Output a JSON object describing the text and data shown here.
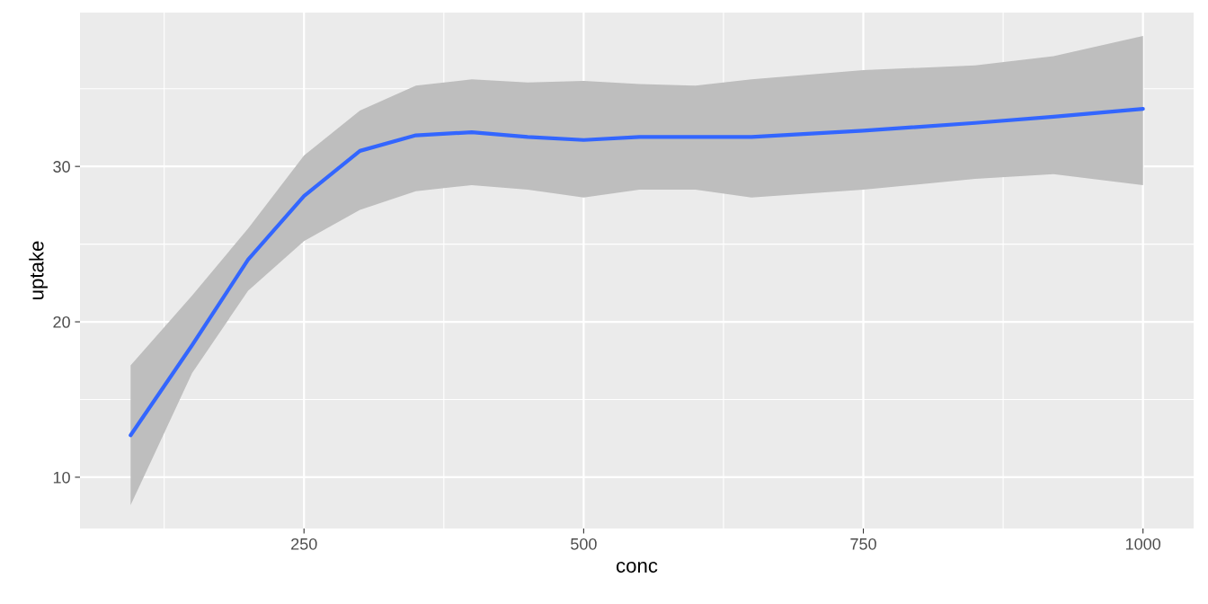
{
  "chart_data": {
    "type": "line",
    "xlabel": "conc",
    "ylabel": "uptake",
    "x": [
      95,
      150,
      200,
      250,
      300,
      350,
      400,
      450,
      500,
      550,
      600,
      650,
      750,
      850,
      920,
      1000
    ],
    "series": [
      {
        "color": "#3366ff",
        "values": [
          12.7,
          18.5,
          24.0,
          28.1,
          31.0,
          32.0,
          32.2,
          31.9,
          31.7,
          31.9,
          31.9,
          31.9,
          32.3,
          32.8,
          33.2,
          33.7
        ],
        "upper": [
          17.2,
          21.7,
          26.0,
          30.7,
          33.6,
          35.2,
          35.6,
          35.4,
          35.5,
          35.3,
          35.2,
          35.6,
          36.2,
          36.5,
          37.1,
          38.4
        ],
        "lower": [
          8.2,
          16.7,
          22.0,
          25.2,
          27.2,
          28.4,
          28.8,
          28.5,
          28.0,
          28.5,
          28.5,
          28.0,
          28.5,
          29.2,
          29.5,
          28.8
        ]
      }
    ],
    "xlim": [
      49.75,
      1045.25
    ],
    "ylim": [
      6.7,
      39.9
    ],
    "xticks": [
      250,
      500,
      750,
      1000
    ],
    "yticks": [
      10,
      20,
      30
    ],
    "grid": true,
    "marker": "none",
    "line_style": "solid"
  }
}
